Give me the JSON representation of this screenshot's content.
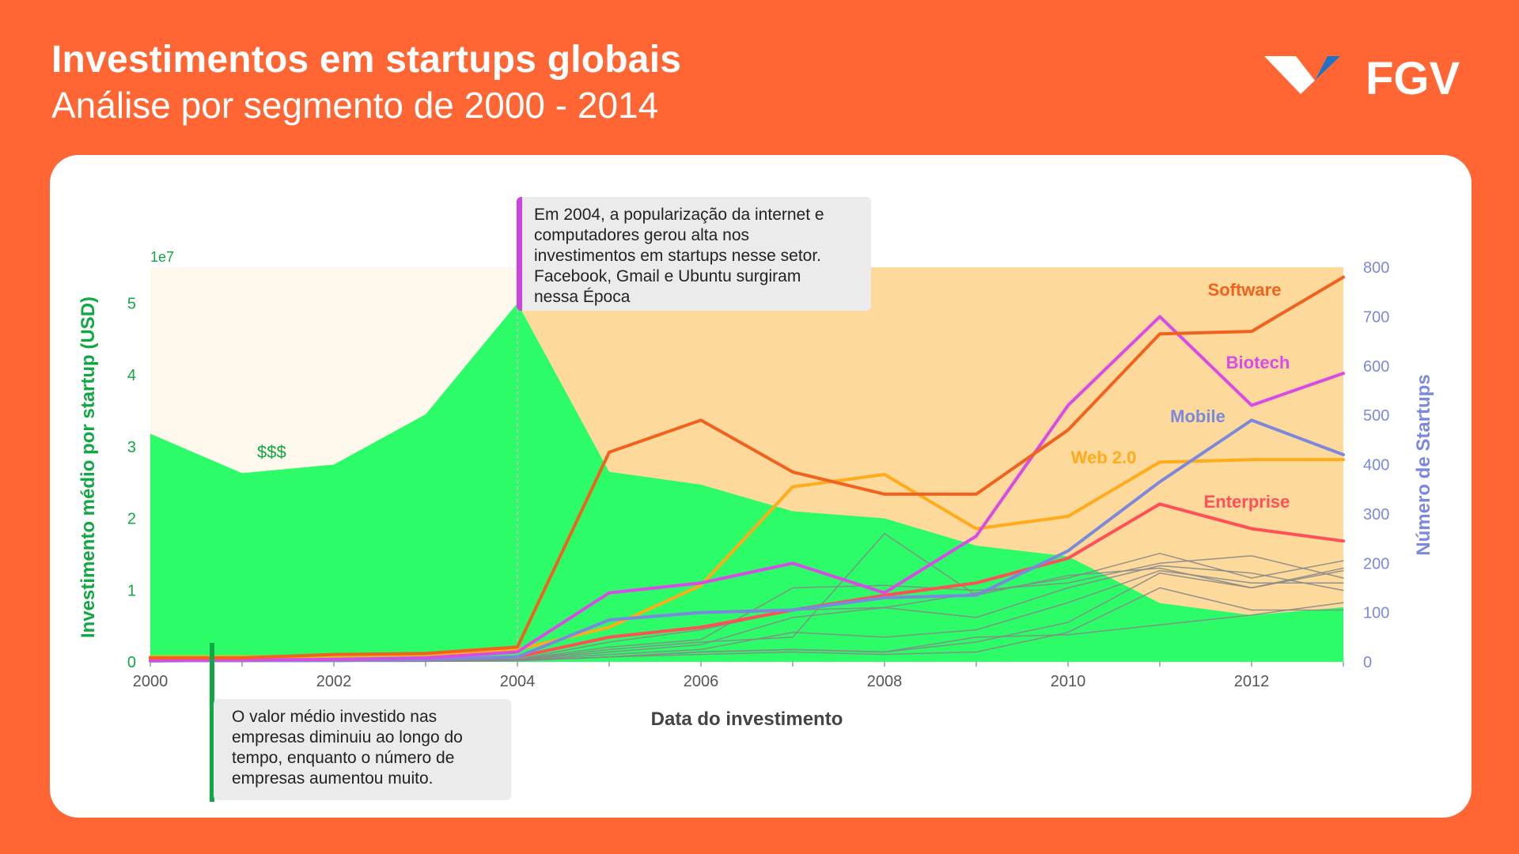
{
  "header": {
    "title": "Investimentos em startups globais",
    "subtitle": "Análise por segmento de 2000 - 2014",
    "logo_text": "FGV"
  },
  "annotations": {
    "top": "Em 2004, a popularização da internet e\ncomputadores gerou alta nos\ninvestimentos em startups nesse setor.\nFacebook, Gmail e Ubuntu surgiram\nnessa Época",
    "bottom": "O valor médio investido nas\nempresas diminuiu ao longo do\ntempo, enquanto o número de\nempresas aumentou muito.",
    "money_label": "$$$"
  },
  "colors": {
    "background": "#ff6633",
    "area": "#2bfc68",
    "left_axis": "#11a844",
    "right_axis": "#7b89dd",
    "gray_lines": "#888888"
  },
  "chart_data": {
    "type": "line",
    "xlabel": "Data do investimento",
    "ylabel_left": "Investimento médio por startup (USD)",
    "ylabel_right": "Número de Startups",
    "left_axis_multiplier": "1e7",
    "x": [
      2000,
      2001,
      2002,
      2003,
      2004,
      2005,
      2006,
      2007,
      2008,
      2009,
      2010,
      2011,
      2012,
      2013
    ],
    "x_ticks": [
      "2000",
      "2002",
      "2004",
      "2006",
      "2008",
      "2010",
      "2012"
    ],
    "y_left_ticks": [
      "0",
      "1",
      "2",
      "3",
      "4",
      "5"
    ],
    "y_right_ticks": [
      "0",
      "100",
      "200",
      "300",
      "400",
      "500",
      "600",
      "700",
      "800"
    ],
    "xlim": [
      2000,
      2013
    ],
    "ylim_left": [
      0,
      5.5
    ],
    "ylim_right": [
      0,
      800
    ],
    "area_series": {
      "name": "Investimento médio por startup",
      "values": [
        3.18,
        2.63,
        2.75,
        3.45,
        5.0,
        2.65,
        2.47,
        2.1,
        2.0,
        1.62,
        1.47,
        0.82,
        0.65,
        0.76
      ]
    },
    "background_bands": [
      {
        "from": 2000,
        "to": 2004,
        "color": "#fff8ec"
      },
      {
        "from": 2004,
        "to": 2013,
        "color": "#fdd99c"
      }
    ],
    "highlight_year": 2004,
    "series": [
      {
        "name": "Software",
        "color": "#f0621e",
        "width": 4,
        "values": [
          8,
          8,
          15,
          17,
          30,
          425,
          490,
          385,
          340,
          340,
          470,
          665,
          670,
          780
        ]
      },
      {
        "name": "Biotech",
        "color": "#d94be6",
        "width": 4,
        "values": [
          3,
          4,
          5,
          8,
          20,
          140,
          160,
          200,
          140,
          255,
          520,
          700,
          520,
          585
        ]
      },
      {
        "name": "Mobile",
        "color": "#7b89dd",
        "width": 4,
        "values": [
          2,
          3,
          3,
          5,
          10,
          85,
          100,
          105,
          130,
          135,
          225,
          365,
          490,
          420
        ]
      },
      {
        "name": "Web 2.0",
        "color": "#ffab1a",
        "width": 4,
        "values": [
          10,
          10,
          12,
          15,
          25,
          70,
          155,
          355,
          380,
          270,
          295,
          405,
          410,
          410
        ]
      },
      {
        "name": "Enterprise",
        "color": "#ff4f57",
        "width": 4,
        "values": [
          2,
          3,
          4,
          5,
          10,
          50,
          70,
          105,
          135,
          160,
          210,
          320,
          270,
          245
        ]
      },
      {
        "name": "",
        "color": "#888888",
        "width": 1.5,
        "values": [
          1,
          1,
          2,
          3,
          5,
          40,
          65,
          105,
          110,
          140,
          170,
          220,
          170,
          205
        ]
      },
      {
        "name": "",
        "color": "#888888",
        "width": 1.5,
        "values": [
          1,
          1,
          2,
          3,
          5,
          30,
          45,
          150,
          155,
          145,
          160,
          200,
          215,
          170
        ]
      },
      {
        "name": "",
        "color": "#888888",
        "width": 1.5,
        "values": [
          1,
          1,
          2,
          2,
          4,
          25,
          40,
          50,
          260,
          135,
          175,
          190,
          150,
          185
        ]
      },
      {
        "name": "",
        "color": "#888888",
        "width": 1.5,
        "values": [
          1,
          1,
          1,
          2,
          4,
          20,
          35,
          90,
          110,
          90,
          150,
          195,
          180,
          145
        ]
      },
      {
        "name": "",
        "color": "#888888",
        "width": 1.5,
        "values": [
          1,
          1,
          1,
          2,
          3,
          15,
          25,
          60,
          50,
          65,
          120,
          185,
          160,
          160
        ]
      },
      {
        "name": "",
        "color": "#888888",
        "width": 1.5,
        "values": [
          1,
          1,
          1,
          2,
          3,
          10,
          20,
          25,
          20,
          40,
          80,
          180,
          150,
          190
        ]
      },
      {
        "name": "",
        "color": "#888888",
        "width": 1.5,
        "values": [
          1,
          1,
          1,
          1,
          3,
          10,
          20,
          25,
          20,
          50,
          55,
          75,
          95,
          120
        ]
      },
      {
        "name": "",
        "color": "#888888",
        "width": 1.5,
        "values": [
          1,
          1,
          1,
          1,
          2,
          10,
          15,
          20,
          15,
          20,
          60,
          150,
          105,
          105
        ]
      }
    ]
  }
}
